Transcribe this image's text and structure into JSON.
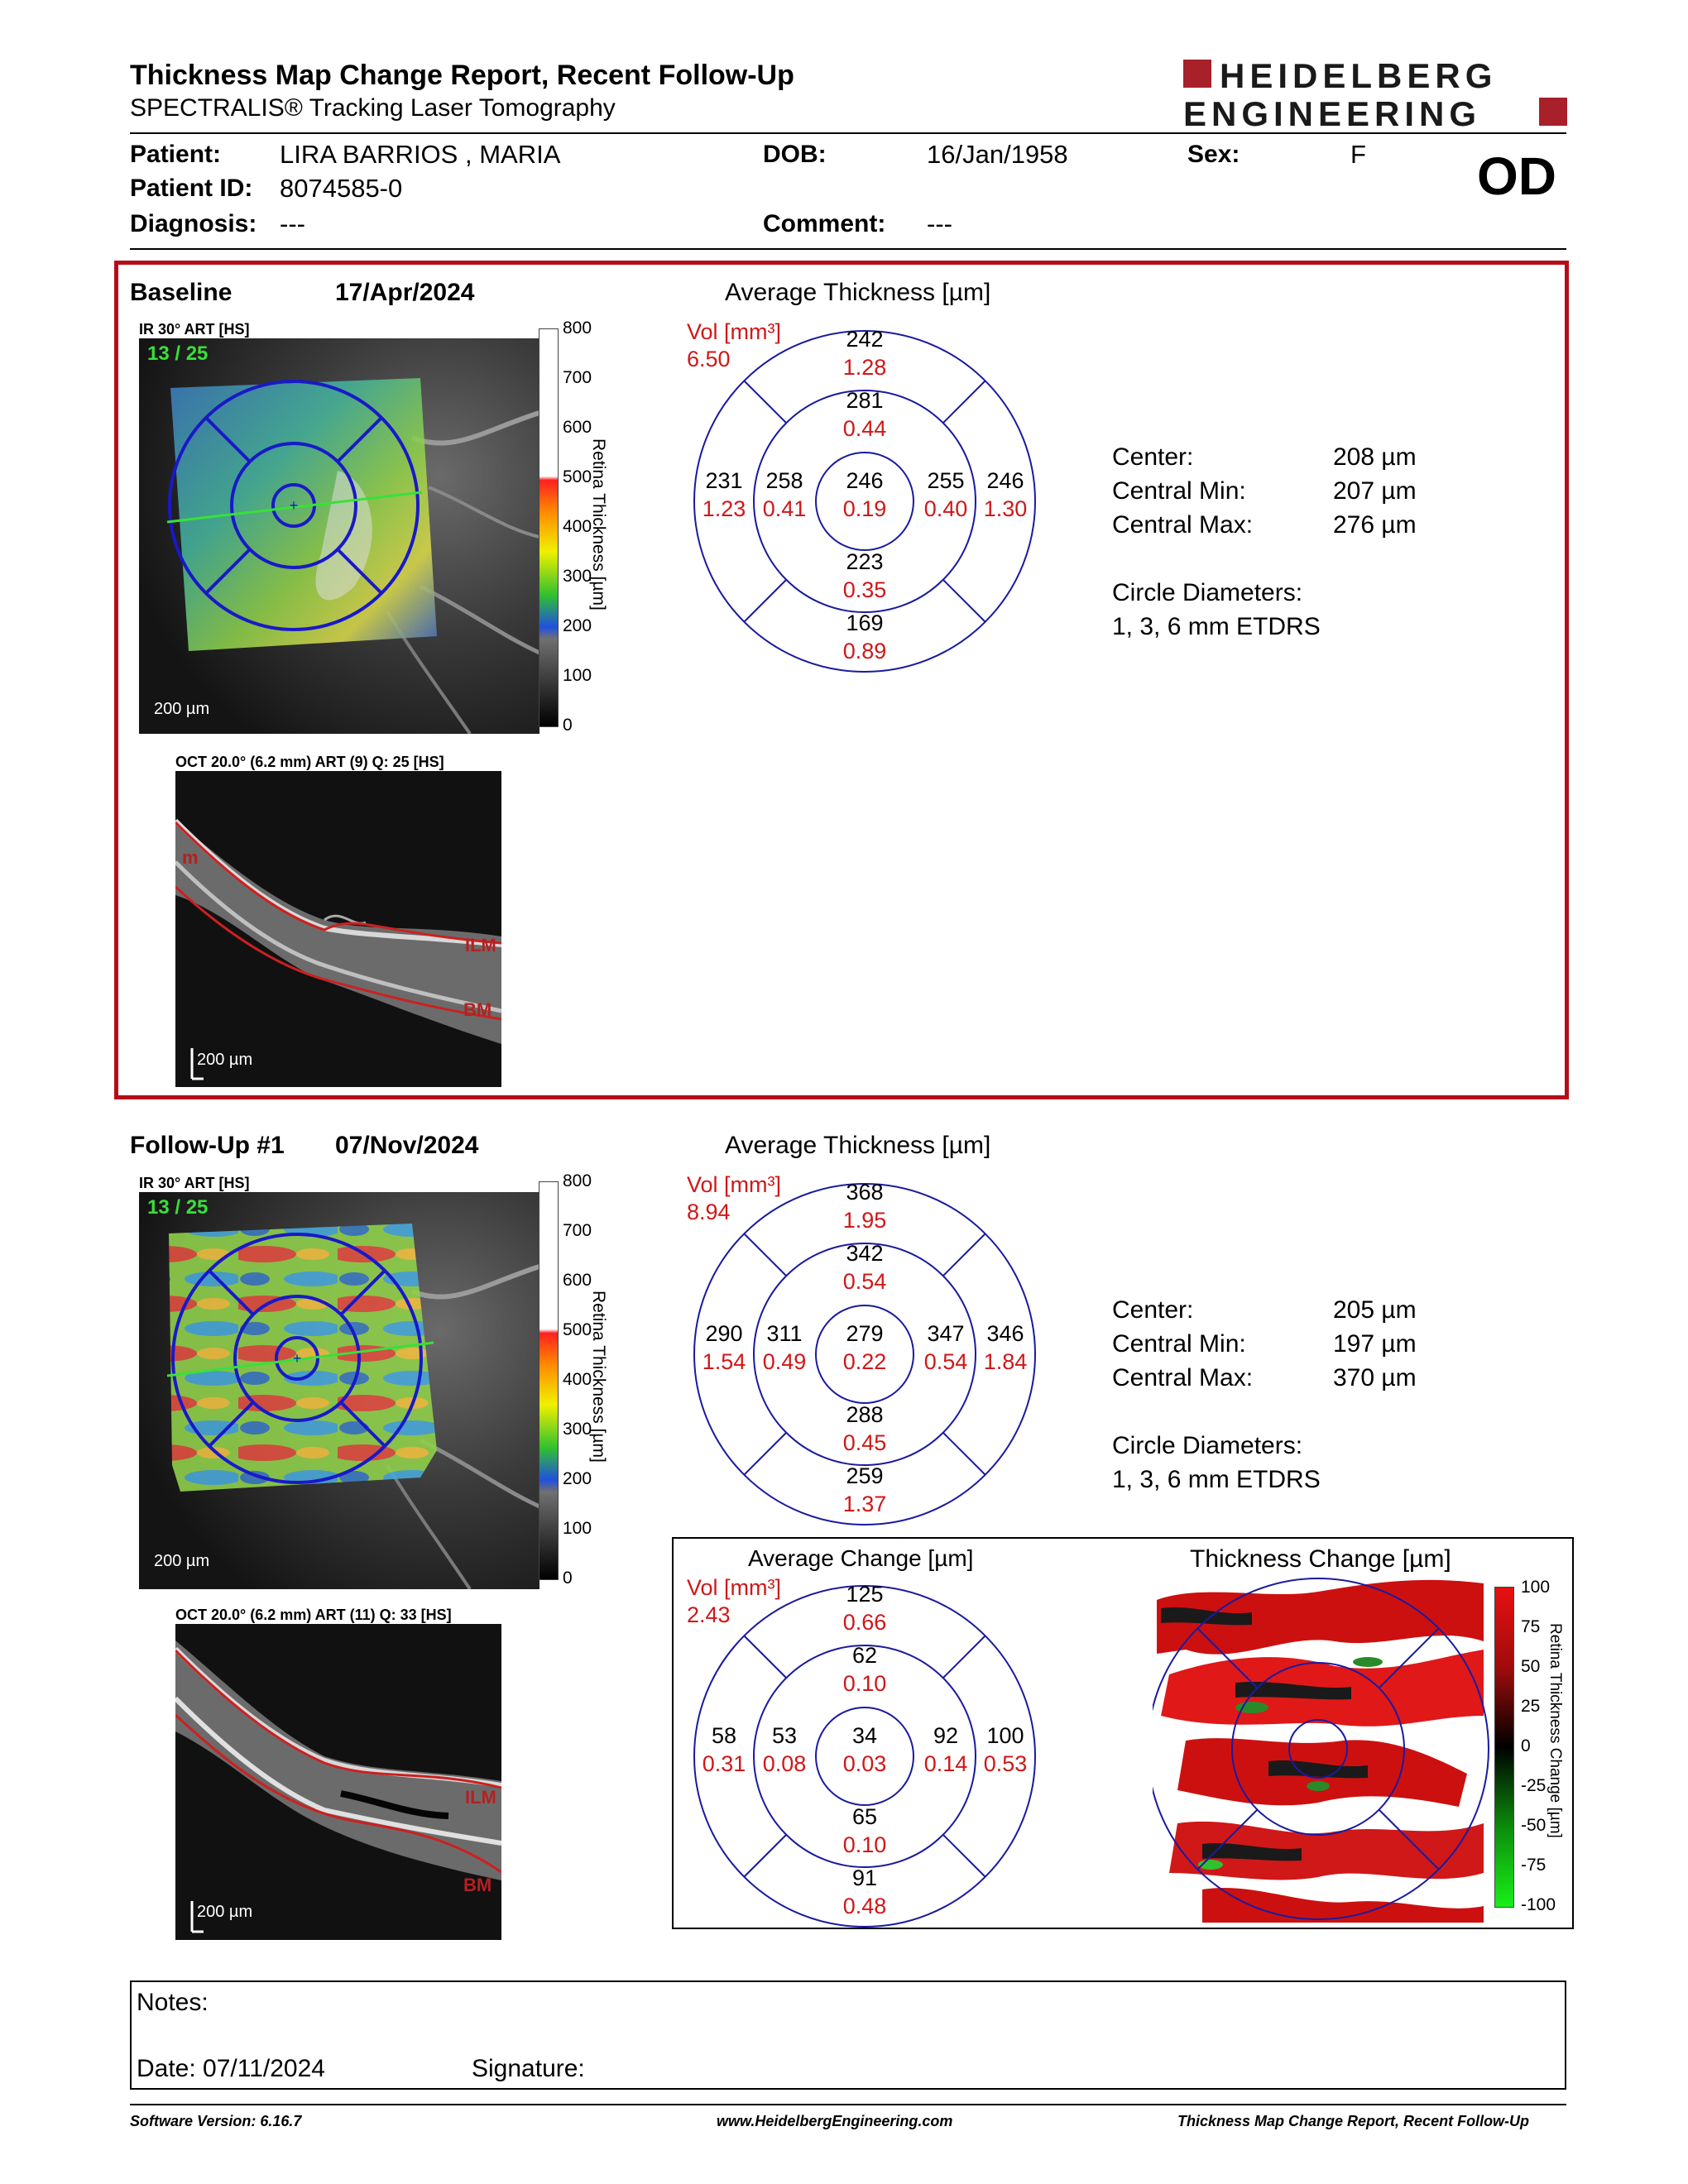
{
  "header": {
    "title": "Thickness Map Change Report, Recent Follow-Up",
    "subtitle": "SPECTRALIS® Tracking Laser Tomography",
    "logo_text": "HEIDELBERG ENGINEERING"
  },
  "patient": {
    "patient_label": "Patient:",
    "patient_name": "LIRA BARRIOS , MARIA",
    "id_label": "Patient ID:",
    "patient_id": "8074585-0",
    "diagnosis_label": "Diagnosis:",
    "diagnosis": "---",
    "dob_label": "DOB:",
    "dob": "16/Jan/1958",
    "comment_label": "Comment:",
    "comment": "---",
    "sex_label": "Sex:",
    "sex": "F",
    "eye": "OD"
  },
  "baseline": {
    "label": "Baseline",
    "date": "17/Apr/2024",
    "ir_label": "IR 30° ART [HS]",
    "frame": "13 / 25",
    "fundus_scale": "200 µm",
    "oct_label": "OCT 20.0° (6.2 mm) ART (9) Q: 25 [HS]",
    "oct_scale": "200 µm",
    "avg_title": "Average Thickness [µm]",
    "vol_label": "Vol [mm³]",
    "vol_total": "6.50",
    "grid": {
      "outer_sup": [
        "242",
        "1.28"
      ],
      "inner_sup": [
        "281",
        "0.44"
      ],
      "outer_temp": [
        "231",
        "1.23"
      ],
      "inner_temp": [
        "258",
        "0.41"
      ],
      "center": [
        "246",
        "0.19"
      ],
      "inner_nas": [
        "255",
        "0.40"
      ],
      "outer_nas": [
        "246",
        "1.30"
      ],
      "inner_inf": [
        "223",
        "0.35"
      ],
      "outer_inf": [
        "169",
        "0.89"
      ]
    },
    "stats": {
      "center_label": "Center:",
      "center": "208 µm",
      "min_label": "Central Min:",
      "min": "207 µm",
      "max_label": "Central Max:",
      "max": "276 µm",
      "circle_label": "Circle Diameters:",
      "circle": "1, 3, 6 mm ETDRS"
    }
  },
  "followup": {
    "label": "Follow-Up #1",
    "date": "07/Nov/2024",
    "ir_label": "IR 30° ART [HS]",
    "frame": "13 / 25",
    "fundus_scale": "200 µm",
    "oct_label": "OCT 20.0° (6.2 mm) ART (11) Q: 33 [HS]",
    "oct_scale": "200 µm",
    "avg_title": "Average Thickness [µm]",
    "vol_label": "Vol [mm³]",
    "vol_total": "8.94",
    "grid": {
      "outer_sup": [
        "368",
        "1.95"
      ],
      "inner_sup": [
        "342",
        "0.54"
      ],
      "outer_temp": [
        "290",
        "1.54"
      ],
      "inner_temp": [
        "311",
        "0.49"
      ],
      "center": [
        "279",
        "0.22"
      ],
      "inner_nas": [
        "347",
        "0.54"
      ],
      "outer_nas": [
        "346",
        "1.84"
      ],
      "inner_inf": [
        "288",
        "0.45"
      ],
      "outer_inf": [
        "259",
        "1.37"
      ]
    },
    "stats": {
      "center_label": "Center:",
      "center": "205 µm",
      "min_label": "Central Min:",
      "min": "197 µm",
      "max_label": "Central Max:",
      "max": "370 µm",
      "circle_label": "Circle Diameters:",
      "circle": "1, 3, 6 mm ETDRS"
    }
  },
  "change": {
    "avg_title": "Average Change [µm]",
    "vol_label": "Vol [mm³]",
    "vol_total": "2.43",
    "grid": {
      "outer_sup": [
        "125",
        "0.66"
      ],
      "inner_sup": [
        "62",
        "0.10"
      ],
      "outer_temp": [
        "58",
        "0.31"
      ],
      "inner_temp": [
        "53",
        "0.08"
      ],
      "center": [
        "34",
        "0.03"
      ],
      "inner_nas": [
        "92",
        "0.14"
      ],
      "outer_nas": [
        "100",
        "0.53"
      ],
      "inner_inf": [
        "65",
        "0.10"
      ],
      "outer_inf": [
        "91",
        "0.48"
      ]
    },
    "map_title": "Thickness Change [µm]",
    "scale_title": "Retina Thickness Change [µm]",
    "scale_ticks": [
      "100",
      "75",
      "50",
      "25",
      "0",
      "-25",
      "-50",
      "-75",
      "-100"
    ]
  },
  "thickness_scale": {
    "title": "Retina Thickness [µm]",
    "ticks": [
      "800",
      "700",
      "600",
      "500",
      "400",
      "300",
      "200",
      "100",
      "0"
    ]
  },
  "oct_layers": {
    "ilm": "ILM",
    "bm": "BM",
    "m": "m"
  },
  "notes": {
    "notes_label": "Notes:",
    "date_label": "Date: 07/11/2024",
    "signature_label": "Signature:"
  },
  "footer": {
    "software": "Software Version: 6.16.7",
    "website": "www.HeidelbergEngineering.com",
    "report_name": "Thickness Map Change Report, Recent Follow-Up"
  },
  "colors": {
    "accent_red": "#b40d19",
    "grid_blue": "#1a1aa0",
    "volume_red": "#d01818"
  }
}
